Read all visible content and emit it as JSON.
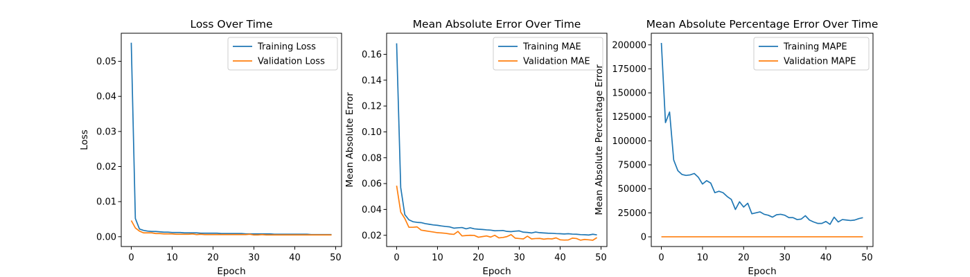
{
  "chart_data": [
    {
      "type": "line",
      "title": "Loss Over Time",
      "xlabel": "Epoch",
      "ylabel": "Loss",
      "xlim": [
        -2.45,
        51.45
      ],
      "ylim": [
        -0.0028,
        0.058
      ],
      "xticks": [
        0,
        10,
        20,
        30,
        40,
        50
      ],
      "yticks": [
        0.0,
        0.01,
        0.02,
        0.03,
        0.04,
        0.05
      ],
      "ytick_labels": [
        "0.00",
        "0.01",
        "0.02",
        "0.03",
        "0.04",
        "0.05"
      ],
      "legend": "upper right",
      "grid": false,
      "x": [
        0,
        1,
        2,
        3,
        4,
        5,
        6,
        7,
        8,
        9,
        10,
        11,
        12,
        13,
        14,
        15,
        16,
        17,
        18,
        19,
        20,
        21,
        22,
        23,
        24,
        25,
        26,
        27,
        28,
        29,
        30,
        31,
        32,
        33,
        34,
        35,
        36,
        37,
        38,
        39,
        40,
        41,
        42,
        43,
        44,
        45,
        46,
        47,
        48,
        49
      ],
      "series": [
        {
          "name": "Training Loss",
          "color": "#1f77b4",
          "values": [
            0.0553,
            0.0052,
            0.0022,
            0.0018,
            0.0016,
            0.0015,
            0.0015,
            0.0014,
            0.0013,
            0.0013,
            0.0012,
            0.0012,
            0.0012,
            0.0011,
            0.0011,
            0.0011,
            0.0011,
            0.001,
            0.001,
            0.001,
            0.001,
            0.001,
            0.0009,
            0.0009,
            0.0009,
            0.0009,
            0.0009,
            0.0009,
            0.0008,
            0.0008,
            0.0008,
            0.0008,
            0.0008,
            0.0008,
            0.0008,
            0.0007,
            0.0007,
            0.0007,
            0.0007,
            0.0007,
            0.0007,
            0.0007,
            0.0007,
            0.0007,
            0.0006,
            0.0006,
            0.0006,
            0.0006,
            0.0006,
            0.0006
          ]
        },
        {
          "name": "Validation Loss",
          "color": "#ff7f0e",
          "values": [
            0.0046,
            0.0025,
            0.0016,
            0.0011,
            0.0011,
            0.0011,
            0.0009,
            0.0009,
            0.0008,
            0.0008,
            0.0008,
            0.0007,
            0.0007,
            0.0007,
            0.0007,
            0.0008,
            0.0006,
            0.0007,
            0.0006,
            0.0006,
            0.0006,
            0.0006,
            0.0006,
            0.0006,
            0.0006,
            0.0006,
            0.0006,
            0.0006,
            0.0006,
            0.0007,
            0.0005,
            0.0005,
            0.0006,
            0.0005,
            0.0005,
            0.0005,
            0.0005,
            0.0005,
            0.0005,
            0.0005,
            0.0005,
            0.0005,
            0.0005,
            0.0005,
            0.0005,
            0.0005,
            0.0005,
            0.0005,
            0.0005,
            0.0005
          ]
        }
      ]
    },
    {
      "type": "line",
      "title": "Mean Absolute Error Over Time",
      "xlabel": "Epoch",
      "ylabel": "Mean Absolute Error",
      "xlim": [
        -2.45,
        51.45
      ],
      "ylim": [
        0.0113,
        0.1763
      ],
      "xticks": [
        0,
        10,
        20,
        30,
        40,
        50
      ],
      "yticks": [
        0.02,
        0.04,
        0.06,
        0.08,
        0.1,
        0.12,
        0.14,
        0.16
      ],
      "ytick_labels": [
        "0.02",
        "0.04",
        "0.06",
        "0.08",
        "0.10",
        "0.12",
        "0.14",
        "0.16"
      ],
      "legend": "upper right",
      "grid": false,
      "x": [
        0,
        1,
        2,
        3,
        4,
        5,
        6,
        7,
        8,
        9,
        10,
        11,
        12,
        13,
        14,
        15,
        16,
        17,
        18,
        19,
        20,
        21,
        22,
        23,
        24,
        25,
        26,
        27,
        28,
        29,
        30,
        31,
        32,
        33,
        34,
        35,
        36,
        37,
        38,
        39,
        40,
        41,
        42,
        43,
        44,
        45,
        46,
        47,
        48,
        49
      ],
      "series": [
        {
          "name": "Training MAE",
          "color": "#1f77b4",
          "values": [
            0.1685,
            0.057,
            0.036,
            0.032,
            0.0305,
            0.03,
            0.0298,
            0.029,
            0.0285,
            0.028,
            0.0277,
            0.0272,
            0.0268,
            0.0265,
            0.0255,
            0.0258,
            0.026,
            0.025,
            0.0258,
            0.025,
            0.0247,
            0.0245,
            0.0242,
            0.024,
            0.0235,
            0.0236,
            0.0237,
            0.023,
            0.0228,
            0.0232,
            0.0234,
            0.0224,
            0.0222,
            0.0218,
            0.0225,
            0.022,
            0.0218,
            0.0216,
            0.0215,
            0.0213,
            0.0212,
            0.021,
            0.0212,
            0.0209,
            0.0208,
            0.0205,
            0.0204,
            0.0202,
            0.0208,
            0.0203
          ]
        },
        {
          "name": "Validation MAE",
          "color": "#ff7f0e",
          "values": [
            0.0584,
            0.038,
            0.033,
            0.0262,
            0.0262,
            0.0265,
            0.024,
            0.0235,
            0.023,
            0.0225,
            0.022,
            0.0218,
            0.0215,
            0.021,
            0.0207,
            0.023,
            0.0195,
            0.0198,
            0.02,
            0.0199,
            0.0185,
            0.019,
            0.0195,
            0.0186,
            0.02,
            0.018,
            0.0183,
            0.019,
            0.0205,
            0.0178,
            0.0175,
            0.0172,
            0.0193,
            0.0172,
            0.0175,
            0.0176,
            0.017,
            0.0174,
            0.0172,
            0.018,
            0.0165,
            0.0163,
            0.0164,
            0.0178,
            0.0175,
            0.0162,
            0.0168,
            0.0165,
            0.0162,
            0.0182
          ]
        }
      ]
    },
    {
      "type": "line",
      "title": "Mean Absolute Percentage Error Over Time",
      "xlabel": "Epoch",
      "ylabel": "Mean Absolute Percentage Error",
      "xlim": [
        -2.45,
        51.45
      ],
      "ylim": [
        -10100,
        212100
      ],
      "xticks": [
        0,
        10,
        20,
        30,
        40,
        50
      ],
      "yticks": [
        0,
        25000,
        50000,
        75000,
        100000,
        125000,
        150000,
        175000,
        200000
      ],
      "ytick_labels": [
        "0",
        "25000",
        "50000",
        "75000",
        "100000",
        "125000",
        "150000",
        "175000",
        "200000"
      ],
      "legend": "upper right",
      "grid": false,
      "x": [
        0,
        1,
        2,
        3,
        4,
        5,
        6,
        7,
        8,
        9,
        10,
        11,
        12,
        13,
        14,
        15,
        16,
        17,
        18,
        19,
        20,
        21,
        22,
        23,
        24,
        25,
        26,
        27,
        28,
        29,
        30,
        31,
        32,
        33,
        34,
        35,
        36,
        37,
        38,
        39,
        40,
        41,
        42,
        43,
        44,
        45,
        46,
        47,
        48,
        49
      ],
      "series": [
        {
          "name": "Training MAPE",
          "color": "#1f77b4",
          "values": [
            202000,
            119000,
            130000,
            80000,
            69000,
            65000,
            64000,
            64500,
            66000,
            62000,
            55000,
            58500,
            56000,
            46000,
            47500,
            46000,
            42000,
            39000,
            28500,
            36500,
            31000,
            35000,
            24000,
            25000,
            26000,
            23500,
            22500,
            20500,
            23000,
            23500,
            22500,
            20000,
            20000,
            18000,
            18500,
            22000,
            17500,
            15500,
            14000,
            14000,
            16000,
            13000,
            20500,
            15500,
            18000,
            17500,
            17000,
            17500,
            19000,
            20000
          ]
        },
        {
          "name": "Validation MAPE",
          "color": "#ff7f0e",
          "values": [
            50,
            50,
            50,
            50,
            50,
            50,
            50,
            50,
            50,
            50,
            50,
            50,
            50,
            50,
            50,
            50,
            50,
            50,
            50,
            50,
            50,
            50,
            50,
            50,
            50,
            50,
            50,
            50,
            50,
            50,
            50,
            50,
            50,
            50,
            50,
            50,
            50,
            50,
            50,
            50,
            50,
            50,
            50,
            50,
            50,
            50,
            50,
            50,
            50,
            50
          ]
        }
      ]
    }
  ]
}
